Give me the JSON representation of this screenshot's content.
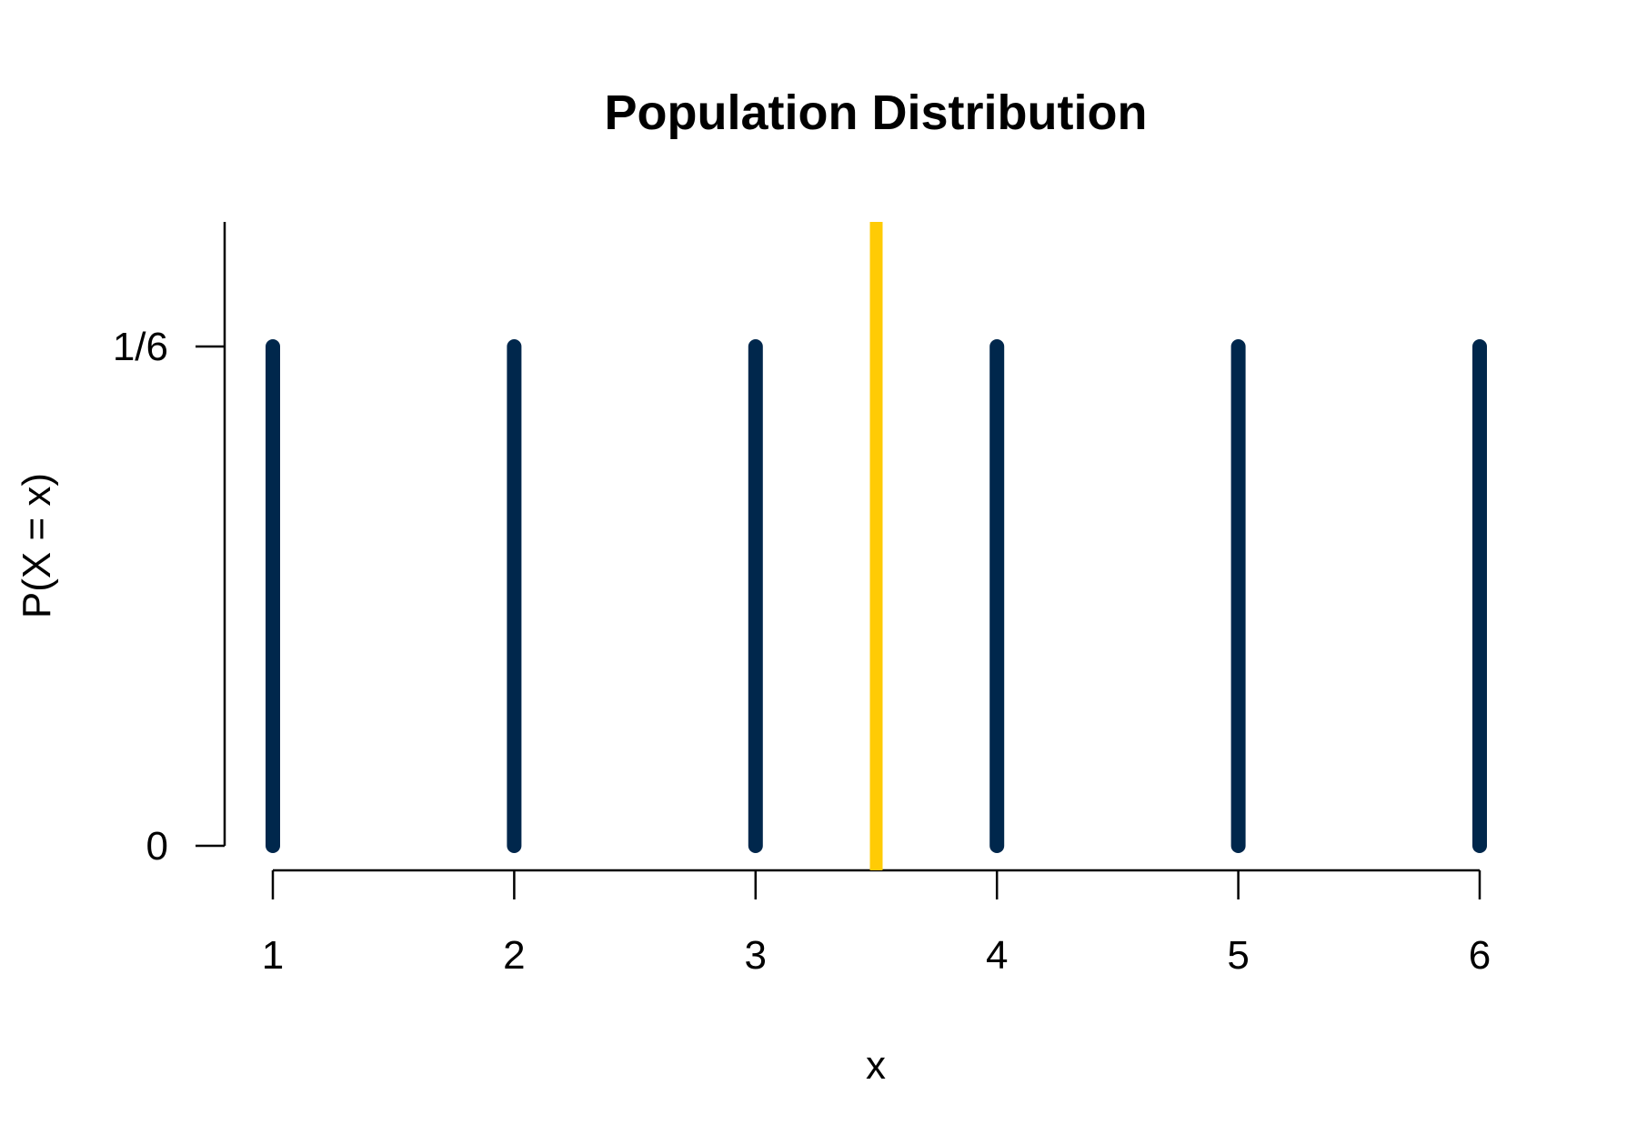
{
  "chart_data": {
    "type": "bar",
    "title": "Population Distribution",
    "xlabel": "x",
    "ylabel": "P(X = x)",
    "x": [
      1,
      2,
      3,
      4,
      5,
      6
    ],
    "values": [
      0.1667,
      0.1667,
      0.1667,
      0.1667,
      0.1667,
      0.1667
    ],
    "xlim": [
      1,
      6
    ],
    "ylim": [
      0,
      0.2083
    ],
    "x_ticks": [
      "1",
      "2",
      "3",
      "4",
      "5",
      "6"
    ],
    "y_ticks": [
      {
        "value": 0,
        "label": "0"
      },
      {
        "value": 0.1667,
        "label": "1/6"
      }
    ],
    "reference_line": {
      "x": 3.5,
      "color": "#FFCB05"
    },
    "bar_color": "#00274C",
    "grid": false,
    "legend": "none"
  }
}
